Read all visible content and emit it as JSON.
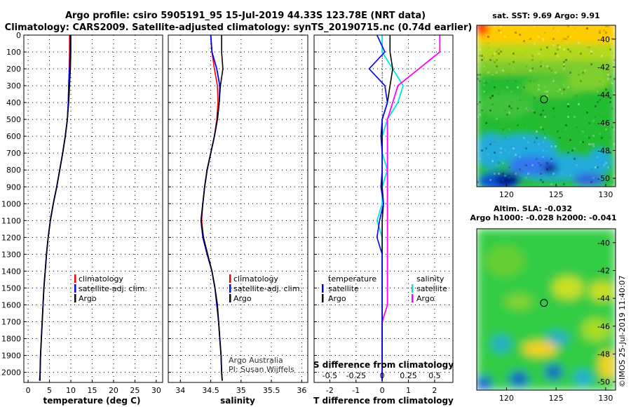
{
  "title_line1": "Argo profile: csiro 5905191_95 15-Jul-2019 44.33S 123.78E (NRT data)",
  "title_line2": "Climatology: CARS2009. Satellite-adjusted climatology: synTS_20190715.nc (0.74d earlier)",
  "credit_line1": "Argo Australia",
  "credit_line2": "PI: Susan Wijffels",
  "watermark": "©IMOS 25-Jul-2019 11:40:07",
  "colors": {
    "climatology": "#ff0000",
    "satellite": "#0000ff",
    "argo": "#000000",
    "sal_satellite": "#00e5e5",
    "sal_argo": "#ff00ff"
  },
  "legend_profile": [
    "climatology",
    "satellite-adj. clim.",
    "Argo"
  ],
  "legend_diff": {
    "head_left": "temperature",
    "head_right": "salinity",
    "items": [
      "satellite",
      "Argo"
    ]
  },
  "maps": {
    "sst": {
      "title": "sat. SST: 9.69 Argo: 9.91",
      "xticks": [
        "120",
        "125",
        "130"
      ],
      "yticks": [
        "-40",
        "-42",
        "-44",
        "-46",
        "-48",
        "-50"
      ],
      "marker": {
        "lon": 123.78,
        "lat": -44.33
      }
    },
    "sla": {
      "title1": "Altim. SLA: -0.032",
      "title2": "Argo h1000: -0.028 h2000: -0.041",
      "xticks": [
        "120",
        "125",
        "130"
      ],
      "yticks": [
        "-40",
        "-42",
        "-44",
        "-46",
        "-48",
        "-50"
      ],
      "marker": {
        "lon": 123.78,
        "lat": -44.33
      }
    }
  },
  "chart_data": [
    {
      "type": "line",
      "xlabel": "temperature (deg C)",
      "xlim": [
        -1,
        31.5
      ],
      "ylim": [
        2060,
        0
      ],
      "xticks": [
        "0",
        "5",
        "10",
        "15",
        "20",
        "25",
        "30"
      ],
      "yticks": [
        "0",
        "100",
        "200",
        "300",
        "400",
        "500",
        "600",
        "700",
        "800",
        "900",
        "1000",
        "1100",
        "1200",
        "1300",
        "1400",
        "1500",
        "1600",
        "1700",
        "1800",
        "1900",
        "2000"
      ],
      "series": [
        {
          "name": "climatology",
          "x": [
            9.7,
            9.7,
            9.6,
            9.5,
            9.4,
            9.2,
            8.7,
            8.1,
            7.4,
            6.7,
            5.9,
            5.2,
            4.7,
            4.3,
            4.0,
            3.7,
            3.5,
            3.3,
            3.1,
            2.9,
            2.8,
            2.7
          ],
          "y": [
            0,
            100,
            200,
            300,
            400,
            500,
            600,
            700,
            800,
            900,
            1000,
            1100,
            1200,
            1300,
            1400,
            1500,
            1600,
            1700,
            1800,
            1900,
            2000,
            2050
          ]
        },
        {
          "name": "satellite-adj. clim.",
          "x": [
            9.9,
            9.8,
            9.7,
            9.5,
            9.4,
            9.2,
            8.7,
            8.1,
            7.4,
            6.7,
            5.9,
            5.2,
            4.7,
            4.3,
            4.0,
            3.7,
            3.5,
            3.3,
            3.1,
            2.9,
            2.8,
            2.7
          ],
          "y": [
            0,
            100,
            200,
            300,
            400,
            500,
            600,
            700,
            800,
            900,
            1000,
            1100,
            1200,
            1300,
            1400,
            1500,
            1600,
            1700,
            1800,
            1900,
            2000,
            2050
          ]
        },
        {
          "name": "Argo",
          "x": [
            10.0,
            10.0,
            9.9,
            9.7,
            9.5,
            9.2,
            8.7,
            8.1,
            7.4,
            6.7,
            5.9,
            5.2,
            4.7,
            4.3,
            4.0,
            3.7,
            3.5,
            3.3,
            3.1,
            2.9,
            2.8,
            2.8
          ],
          "y": [
            0,
            100,
            200,
            300,
            400,
            500,
            600,
            700,
            800,
            900,
            1000,
            1100,
            1200,
            1300,
            1400,
            1500,
            1600,
            1700,
            1800,
            1900,
            2000,
            2050
          ]
        }
      ]
    },
    {
      "type": "line",
      "xlabel": "salinity",
      "xlim": [
        33.8,
        36.1
      ],
      "ylim": [
        2060,
        0
      ],
      "xticks": [
        "34",
        "34.5",
        "35",
        "35.5",
        "36"
      ],
      "series": [
        {
          "name": "climatology",
          "x": [
            34.5,
            34.52,
            34.56,
            34.61,
            34.62,
            34.6,
            34.56,
            34.5,
            34.44,
            34.4,
            34.37,
            34.35,
            34.38,
            34.45,
            34.52,
            34.57,
            34.61,
            34.63,
            34.65,
            34.67,
            34.68,
            34.69
          ],
          "y": [
            0,
            100,
            200,
            300,
            400,
            500,
            600,
            700,
            800,
            900,
            1000,
            1100,
            1200,
            1300,
            1400,
            1500,
            1600,
            1700,
            1800,
            1900,
            2000,
            2050
          ]
        },
        {
          "name": "satellite-adj. clim.",
          "x": [
            34.5,
            34.52,
            34.6,
            34.65,
            34.64,
            34.61,
            34.56,
            34.5,
            34.44,
            34.4,
            34.37,
            34.34,
            34.37,
            34.44,
            34.52,
            34.57,
            34.6,
            34.63,
            34.65,
            34.67,
            34.68,
            34.69
          ],
          "y": [
            0,
            100,
            200,
            300,
            400,
            500,
            600,
            700,
            800,
            900,
            1000,
            1100,
            1200,
            1300,
            1400,
            1500,
            1600,
            1700,
            1800,
            1900,
            2000,
            2050
          ]
        },
        {
          "name": "Argo",
          "x": [
            34.68,
            34.68,
            34.7,
            34.66,
            34.64,
            34.61,
            34.56,
            34.5,
            34.44,
            34.4,
            34.37,
            34.34,
            34.38,
            34.45,
            34.52,
            34.57,
            34.61,
            34.63,
            34.65,
            34.67,
            34.68,
            34.69
          ],
          "y": [
            0,
            100,
            200,
            300,
            400,
            500,
            600,
            700,
            800,
            900,
            1000,
            1100,
            1200,
            1300,
            1400,
            1500,
            1600,
            1700,
            1800,
            1900,
            2000,
            2050
          ]
        }
      ]
    },
    {
      "type": "line",
      "xlabel": "T difference from climatology",
      "xlabel_top": "S difference from climatology",
      "xlim": [
        -2.6,
        2.7
      ],
      "ylim": [
        2060,
        0
      ],
      "xticks": [
        "-2",
        "-1",
        "0",
        "1",
        "2"
      ],
      "xticks_s": [
        "-0.5",
        "-0.25",
        "0",
        "0.25",
        "0.5"
      ],
      "series": [
        {
          "name": "temperature satellite",
          "x": [
            -0.2,
            0.1,
            -0.5,
            0.1,
            0.2,
            0.0,
            -0.05,
            0.0,
            0.0,
            -0.05,
            0.05,
            -0.1,
            -0.2,
            0.0,
            0.0,
            0.0,
            0.0,
            0.0,
            0.0,
            0.0,
            0.0,
            0.0
          ],
          "y": [
            0,
            100,
            200,
            300,
            400,
            500,
            600,
            700,
            800,
            900,
            1000,
            1100,
            1200,
            1300,
            1400,
            1500,
            1600,
            1700,
            1800,
            1900,
            2000,
            2050
          ]
        },
        {
          "name": "temperature Argo",
          "x": [
            0.3,
            0.3,
            0.4,
            0.3,
            0.2,
            0.0,
            0.0,
            0.0,
            0.0,
            0.0,
            0.05,
            0.0,
            0.0,
            0.0,
            0.0,
            0.0,
            0.0,
            0.0,
            0.0,
            0.0,
            0.0,
            0.0
          ],
          "y": [
            0,
            100,
            200,
            300,
            400,
            500,
            600,
            700,
            800,
            900,
            1000,
            1100,
            1200,
            1300,
            1400,
            1500,
            1600,
            1700,
            1800,
            1900,
            2000,
            2050
          ]
        },
        {
          "name": "salinity satellite",
          "x": [
            0.0,
            0.0,
            0.1,
            0.2,
            0.15,
            0.05,
            0.0,
            0.0,
            0.05,
            0.0,
            0.0,
            -0.05,
            0.0,
            0.0,
            0.0,
            0.0,
            0.0,
            0.0,
            0.0,
            0.0,
            0.0,
            0.0
          ],
          "y": [
            0,
            100,
            200,
            300,
            400,
            500,
            600,
            700,
            800,
            900,
            1000,
            1100,
            1200,
            1300,
            1400,
            1500,
            1600,
            1700,
            1800,
            1900,
            2000,
            2050
          ]
        },
        {
          "name": "salinity Argo",
          "x": [
            0.55,
            0.55,
            0.35,
            0.15,
            0.1,
            0.05,
            0.05,
            0.05,
            0.05,
            0.05,
            0.05,
            0.05,
            0.05,
            0.05,
            0.05,
            0.05,
            0.05,
            0.0,
            0.0,
            0.0,
            0.0,
            0.0
          ],
          "y": [
            0,
            100,
            200,
            300,
            400,
            500,
            600,
            700,
            800,
            900,
            1000,
            1100,
            1200,
            1300,
            1400,
            1500,
            1600,
            1700,
            1800,
            1900,
            2000,
            2050
          ]
        }
      ]
    }
  ]
}
